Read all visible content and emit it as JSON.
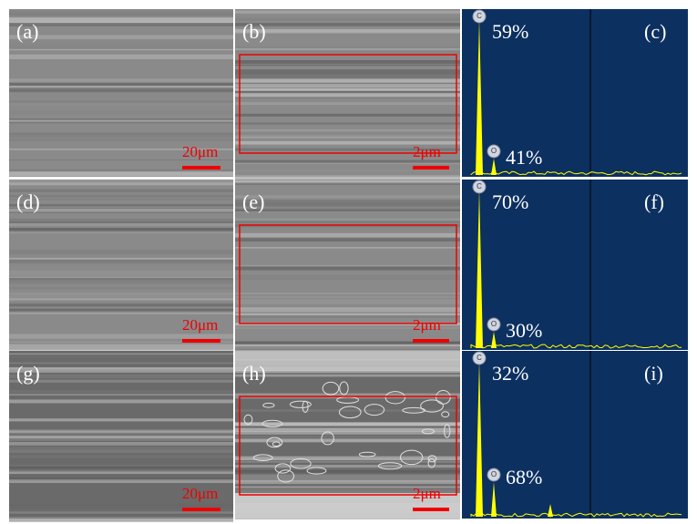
{
  "panels": [
    {
      "label": "(a)",
      "scale_bar": "20μm"
    },
    {
      "label": "(b)",
      "scale_bar": "2μm"
    },
    {
      "label": "(c)",
      "elements": [
        {
          "symbol": "C",
          "percent": "59%"
        },
        {
          "symbol": "O",
          "percent": "41%"
        }
      ]
    },
    {
      "label": "(d)",
      "scale_bar": "20μm"
    },
    {
      "label": "(e)",
      "scale_bar": "2μm"
    },
    {
      "label": "(f)",
      "elements": [
        {
          "symbol": "C",
          "percent": "70%"
        },
        {
          "symbol": "O",
          "percent": "30%"
        }
      ]
    },
    {
      "label": "(g)",
      "scale_bar": "20μm"
    },
    {
      "label": "(h)",
      "scale_bar": "2μm"
    },
    {
      "label": "(i)",
      "elements": [
        {
          "symbol": "C",
          "percent": "32%"
        },
        {
          "symbol": "O",
          "percent": "68%"
        }
      ]
    }
  ]
}
